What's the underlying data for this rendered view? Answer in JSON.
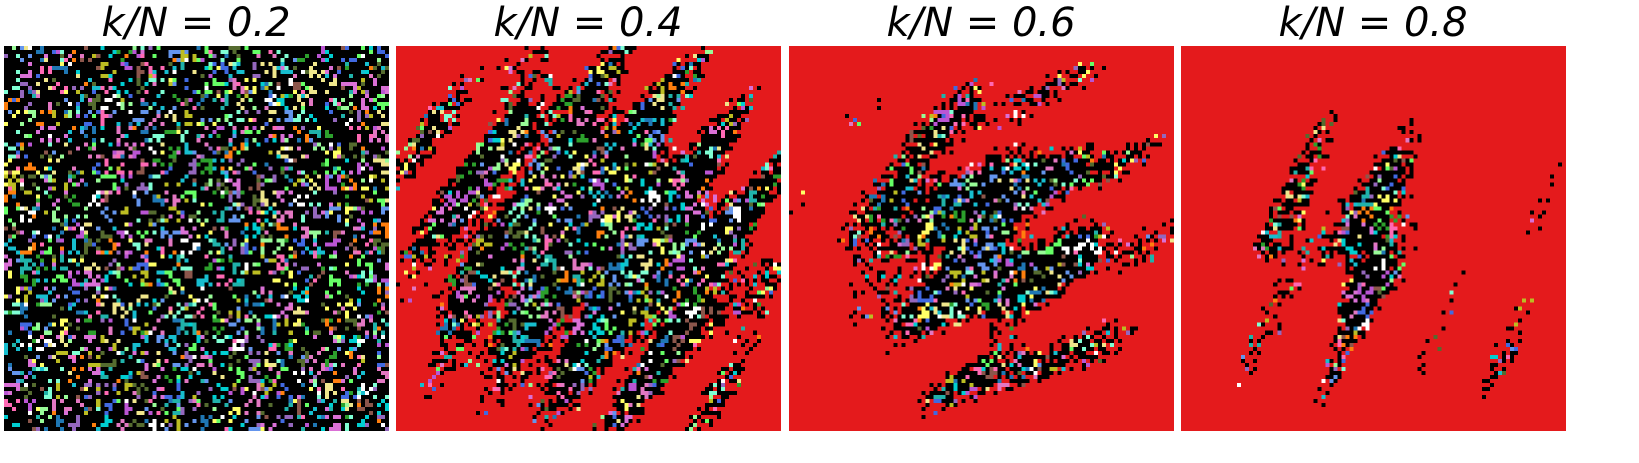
{
  "panels": [
    {
      "title": "k/N = 0.2"
    },
    {
      "title": "k/N = 0.4"
    },
    {
      "title": "k/N = 0.6"
    },
    {
      "title": "k/N = 0.8"
    }
  ]
}
